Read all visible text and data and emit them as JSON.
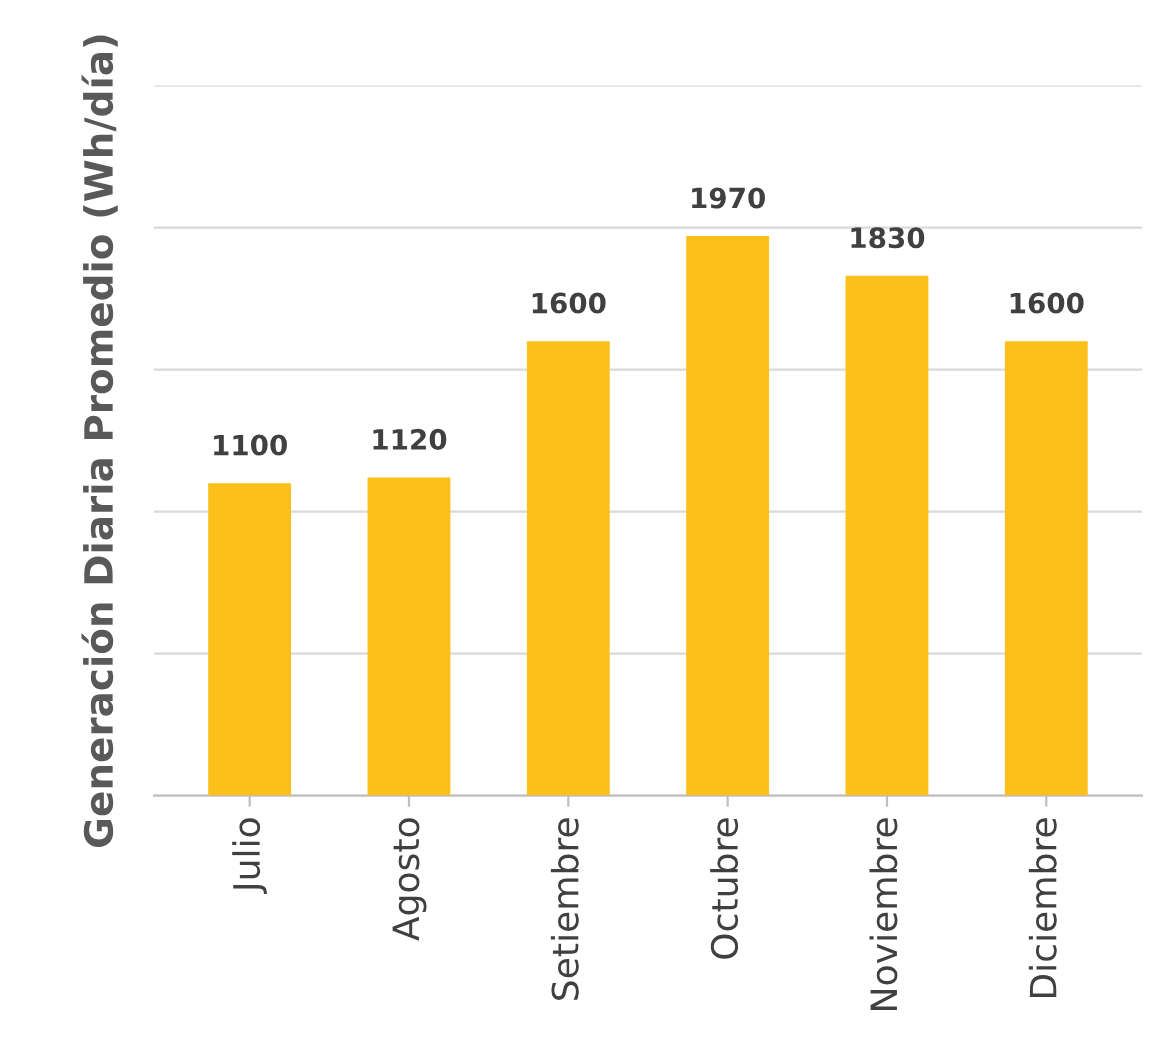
{
  "chart_data": {
    "type": "bar",
    "ylabel": "Generación Diaria Promedio (Wh/día)",
    "categories": [
      "Julio",
      "Agosto",
      "Setiembre",
      "Octubre",
      "Noviembre",
      "Diciembre"
    ],
    "values": [
      1100,
      1120,
      1600,
      1970,
      1830,
      1600
    ],
    "color": "#fdbf1a",
    "data_labels": true,
    "ylim": [
      0,
      2500
    ],
    "yticks": [
      {
        "value": 0,
        "label": null
      },
      {
        "value": 500,
        "label": null
      },
      {
        "value": 1000,
        "label": null
      },
      {
        "value": 1500,
        "label": null
      },
      {
        "value": 2000,
        "label": null
      },
      {
        "value": 2500,
        "label": null
      }
    ],
    "grid": "y",
    "tick_labels": "x"
  }
}
